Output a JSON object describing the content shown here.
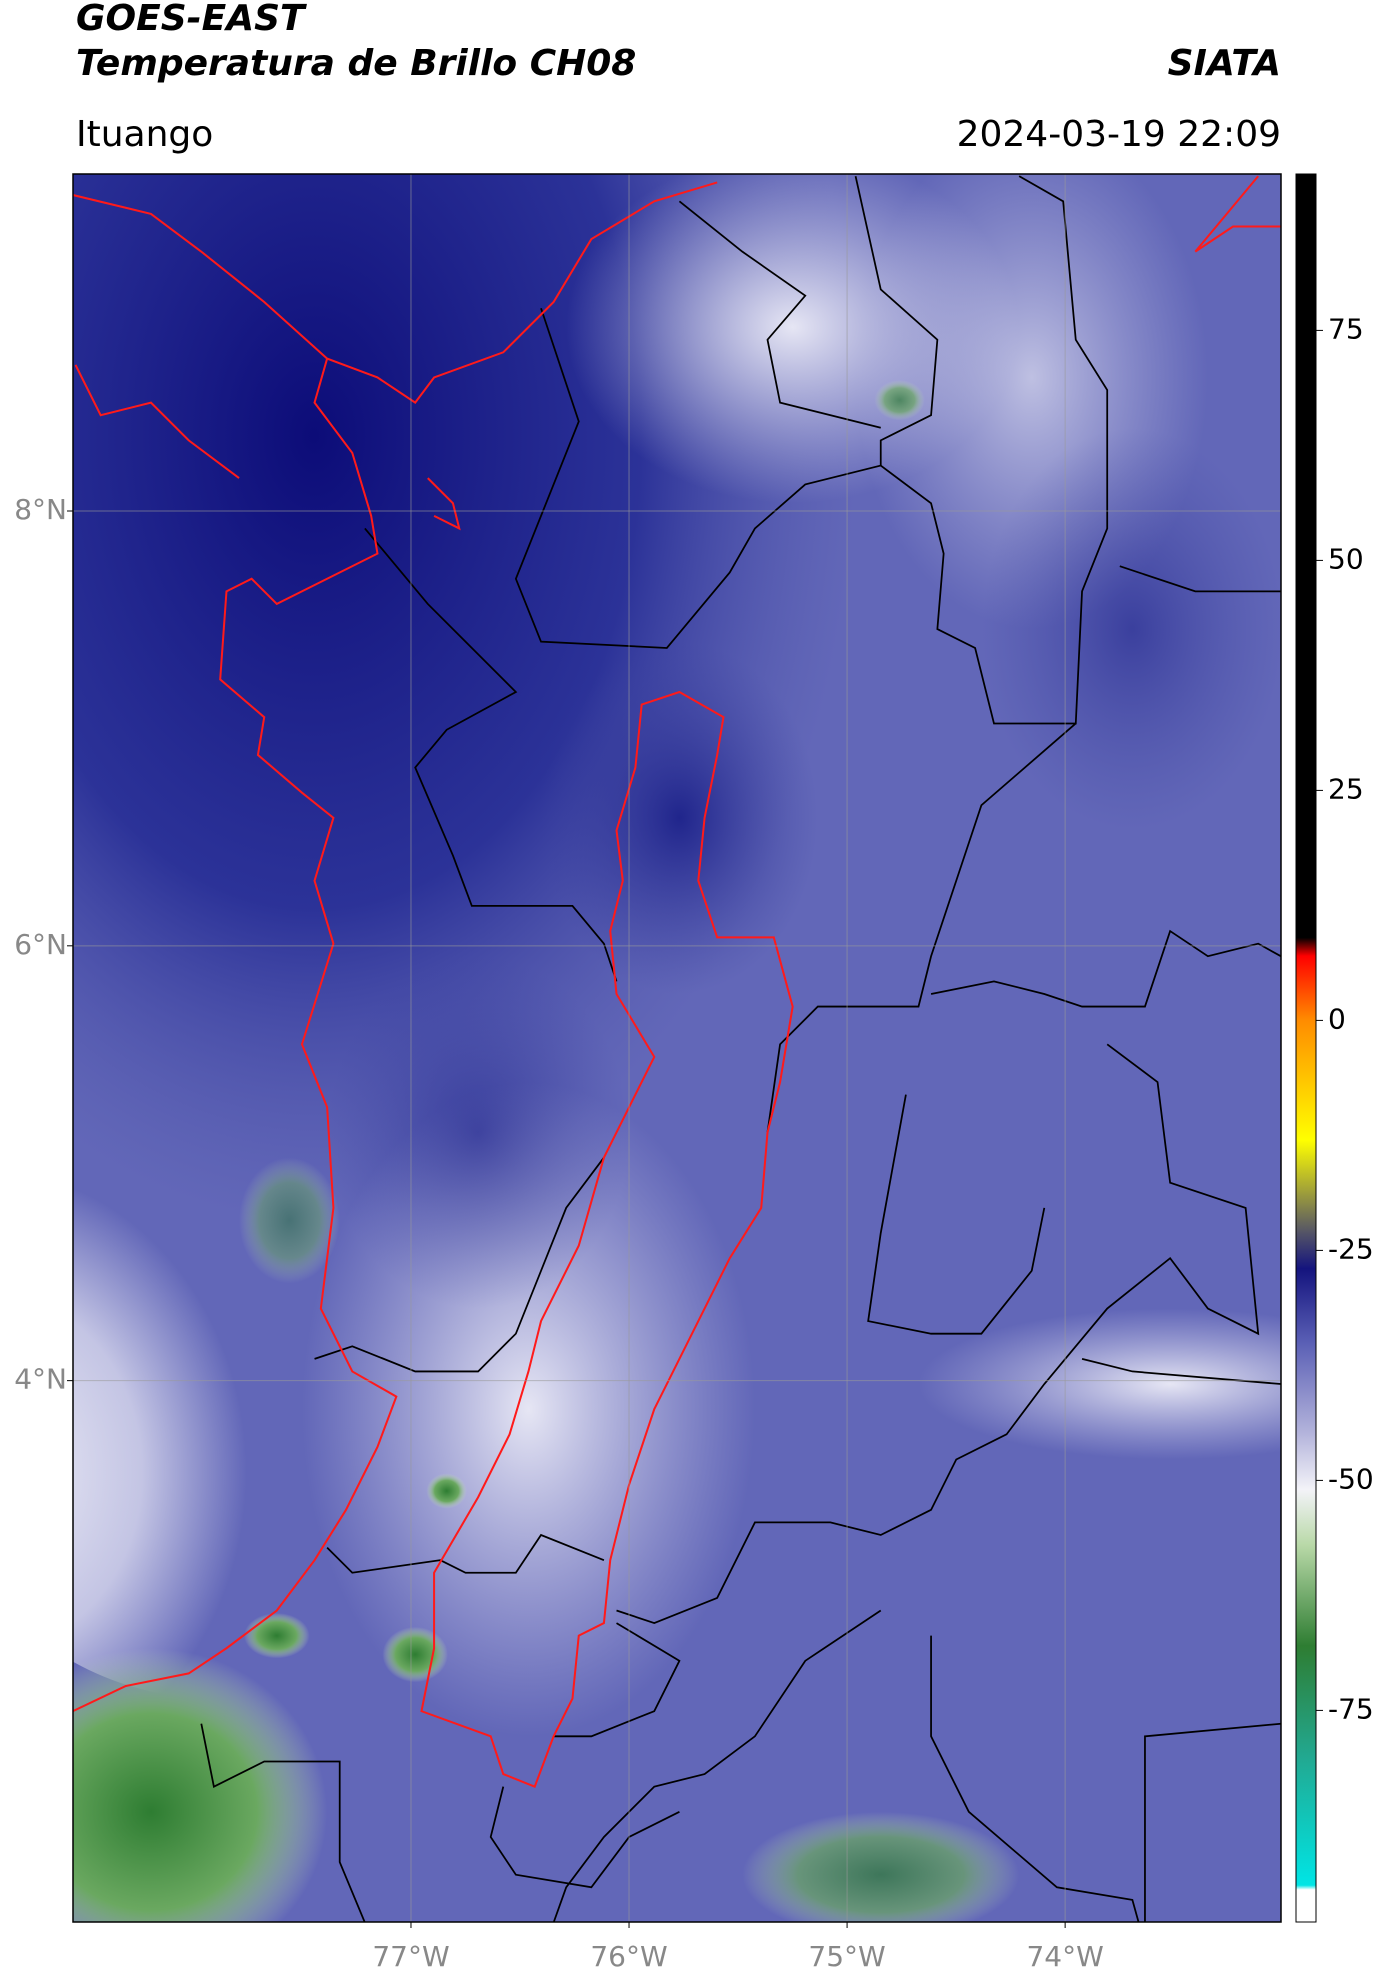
{
  "header": {
    "title": "GOES-EAST",
    "subtitle": "Temperatura de Brillo CH08",
    "source": "SIATA",
    "location": "Ituango",
    "datetime": "2024-03-19 22:09"
  },
  "chart_data": {
    "type": "map",
    "xlim": [
      -78.55,
      -73.01
    ],
    "ylim": [
      1.51,
      9.55
    ],
    "xticks": [
      {
        "value": -77,
        "label": "77°W"
      },
      {
        "value": -76,
        "label": "76°W"
      },
      {
        "value": -75,
        "label": "75°W"
      },
      {
        "value": -74,
        "label": "74°W"
      }
    ],
    "yticks": [
      {
        "value": 4,
        "label": "4°N"
      },
      {
        "value": 6,
        "label": "6°N"
      },
      {
        "value": 8,
        "label": "8°N"
      }
    ],
    "grid": true,
    "colorbar": {
      "clim": [
        -98,
        92
      ],
      "ticks": [
        -75,
        -50,
        -25,
        0,
        25,
        50,
        75
      ],
      "colormap": [
        {
          "value": -98,
          "color": "#ffffff"
        },
        {
          "value": -94.5,
          "color": "#ffffff"
        },
        {
          "value": -94,
          "color": "#00e5e5"
        },
        {
          "value": -80,
          "color": "#22a890"
        },
        {
          "value": -68,
          "color": "#2e7d32"
        },
        {
          "value": -57,
          "color": "#b9d9a8"
        },
        {
          "value": -51,
          "color": "#f3f3f8"
        },
        {
          "value": -45,
          "color": "#b5b5dc"
        },
        {
          "value": -35,
          "color": "#5a5fb5"
        },
        {
          "value": -27,
          "color": "#14147e"
        },
        {
          "value": -23,
          "color": "#555566"
        },
        {
          "value": -13,
          "color": "#ffff00"
        },
        {
          "value": 0,
          "color": "#ff8c00"
        },
        {
          "value": 7,
          "color": "#ff0000"
        },
        {
          "value": 9,
          "color": "#000000"
        },
        {
          "value": 92,
          "color": "#000000"
        }
      ]
    }
  }
}
